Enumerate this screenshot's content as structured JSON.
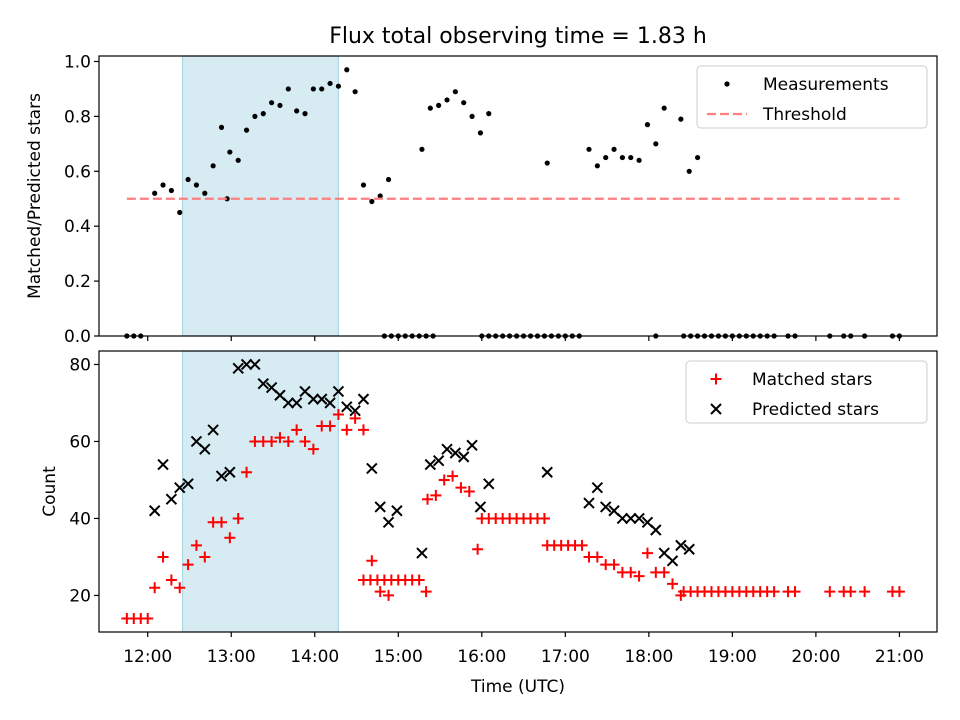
{
  "title": "Flux total observing time = 1.83 h",
  "chart_data": [
    {
      "type": "scatter",
      "ylabel": "Matched/Predicted stars",
      "xlabel": "",
      "xlim": [
        "11:25",
        "21:27"
      ],
      "ylim": [
        0,
        1.02
      ],
      "yticks": [
        "0.0",
        "0.2",
        "0.4",
        "0.6",
        "0.8",
        "1.0"
      ],
      "grid": false,
      "legend_position": "top-right",
      "shaded_interval": [
        "12:25",
        "14:17"
      ],
      "series": [
        {
          "name": "Measurements",
          "marker": "dot",
          "color": "#000000",
          "points": [
            [
              "11:45",
              0
            ],
            [
              "11:50",
              0
            ],
            [
              "11:55",
              0
            ],
            [
              "12:05",
              0.52
            ],
            [
              "12:11",
              0.55
            ],
            [
              "12:17",
              0.53
            ],
            [
              "12:23",
              0.45
            ],
            [
              "12:29",
              0.57
            ],
            [
              "12:35",
              0.55
            ],
            [
              "12:41",
              0.52
            ],
            [
              "12:47",
              0.62
            ],
            [
              "12:53",
              0.76
            ],
            [
              "12:59",
              0.67
            ],
            [
              "13:05",
              0.64
            ],
            [
              "13:11",
              0.75
            ],
            [
              "13:17",
              0.8
            ],
            [
              "13:23",
              0.81
            ],
            [
              "13:29",
              0.85
            ],
            [
              "13:35",
              0.84
            ],
            [
              "13:41",
              0.9
            ],
            [
              "13:47",
              0.82
            ],
            [
              "13:53",
              0.81
            ],
            [
              "13:59",
              0.9
            ],
            [
              "14:05",
              0.9
            ],
            [
              "14:11",
              0.92
            ],
            [
              "14:17",
              0.91
            ],
            [
              "14:23",
              0.97
            ],
            [
              "14:29",
              0.89
            ],
            [
              "14:35",
              0.55
            ],
            [
              "14:41",
              0.49
            ],
            [
              "14:47",
              0.51
            ],
            [
              "14:53",
              0.57
            ],
            [
              "12:57",
              0.5
            ],
            [
              "14:50",
              0
            ],
            [
              "14:55",
              0
            ],
            [
              "15:00",
              0
            ],
            [
              "15:05",
              0
            ],
            [
              "15:10",
              0
            ],
            [
              "15:15",
              0
            ],
            [
              "15:20",
              0
            ],
            [
              "15:25",
              0
            ],
            [
              "15:17",
              0.68
            ],
            [
              "15:23",
              0.83
            ],
            [
              "15:29",
              0.84
            ],
            [
              "15:35",
              0.86
            ],
            [
              "15:41",
              0.89
            ],
            [
              "15:47",
              0.85
            ],
            [
              "15:53",
              0.8
            ],
            [
              "15:59",
              0.74
            ],
            [
              "16:05",
              0.81
            ],
            [
              "16:00",
              0
            ],
            [
              "16:05",
              0
            ],
            [
              "16:10",
              0
            ],
            [
              "16:15",
              0
            ],
            [
              "16:20",
              0
            ],
            [
              "16:25",
              0
            ],
            [
              "16:30",
              0
            ],
            [
              "16:35",
              0
            ],
            [
              "16:40",
              0
            ],
            [
              "16:45",
              0
            ],
            [
              "16:50",
              0
            ],
            [
              "16:55",
              0
            ],
            [
              "17:00",
              0
            ],
            [
              "17:05",
              0
            ],
            [
              "17:10",
              0
            ],
            [
              "16:47",
              0.63
            ],
            [
              "17:17",
              0.68
            ],
            [
              "17:23",
              0.62
            ],
            [
              "17:29",
              0.65
            ],
            [
              "17:35",
              0.68
            ],
            [
              "17:41",
              0.65
            ],
            [
              "17:47",
              0.65
            ],
            [
              "17:53",
              0.64
            ],
            [
              "17:59",
              0.77
            ],
            [
              "18:05",
              0.7
            ],
            [
              "18:11",
              0.83
            ],
            [
              "18:23",
              0.79
            ],
            [
              "18:29",
              0.6
            ],
            [
              "18:35",
              0.65
            ],
            [
              "18:05",
              0
            ],
            [
              "18:25",
              0
            ],
            [
              "18:30",
              0
            ],
            [
              "18:35",
              0
            ],
            [
              "18:40",
              0
            ],
            [
              "18:45",
              0
            ],
            [
              "18:50",
              0
            ],
            [
              "18:55",
              0
            ],
            [
              "19:00",
              0
            ],
            [
              "19:05",
              0
            ],
            [
              "19:10",
              0
            ],
            [
              "19:15",
              0
            ],
            [
              "19:20",
              0
            ],
            [
              "19:25",
              0
            ],
            [
              "19:30",
              0
            ],
            [
              "19:40",
              0
            ],
            [
              "19:45",
              0
            ],
            [
              "20:10",
              0
            ],
            [
              "20:20",
              0
            ],
            [
              "20:25",
              0
            ],
            [
              "20:35",
              0
            ],
            [
              "20:55",
              0
            ],
            [
              "21:00",
              0
            ]
          ]
        },
        {
          "name": "Threshold",
          "style": "dashed",
          "color": "#ff7f7f",
          "points": [
            [
              "11:45",
              0.5
            ],
            [
              "21:00",
              0.5
            ]
          ]
        }
      ]
    },
    {
      "type": "scatter",
      "ylabel": "Count",
      "xlabel": "Time (UTC)",
      "xlim": [
        "11:25",
        "21:27"
      ],
      "ylim": [
        10.5,
        83.5
      ],
      "yticks": [
        "20",
        "40",
        "60",
        "80"
      ],
      "xticks": [
        "12:00",
        "13:00",
        "14:00",
        "15:00",
        "16:00",
        "17:00",
        "18:00",
        "19:00",
        "20:00",
        "21:00"
      ],
      "grid": false,
      "legend_position": "top-right",
      "shaded_interval": [
        "12:25",
        "14:17"
      ],
      "series": [
        {
          "name": "Matched stars",
          "marker": "plus",
          "color": "#ff0000",
          "points": [
            [
              "11:45",
              14
            ],
            [
              "11:50",
              14
            ],
            [
              "11:55",
              14
            ],
            [
              "12:00",
              14
            ],
            [
              "12:05",
              22
            ],
            [
              "12:11",
              30
            ],
            [
              "12:17",
              24
            ],
            [
              "12:23",
              22
            ],
            [
              "12:29",
              28
            ],
            [
              "12:35",
              33
            ],
            [
              "12:41",
              30
            ],
            [
              "12:47",
              39
            ],
            [
              "12:53",
              39
            ],
            [
              "12:59",
              35
            ],
            [
              "13:05",
              40
            ],
            [
              "13:11",
              52
            ],
            [
              "13:17",
              60
            ],
            [
              "13:23",
              60
            ],
            [
              "13:29",
              60
            ],
            [
              "13:35",
              61
            ],
            [
              "13:41",
              60
            ],
            [
              "13:47",
              63
            ],
            [
              "13:53",
              60
            ],
            [
              "13:59",
              58
            ],
            [
              "14:05",
              64
            ],
            [
              "14:11",
              64
            ],
            [
              "14:17",
              67
            ],
            [
              "14:23",
              63
            ],
            [
              "14:29",
              66
            ],
            [
              "14:35",
              63
            ],
            [
              "14:41",
              29
            ],
            [
              "14:47",
              21
            ],
            [
              "14:53",
              20
            ],
            [
              "14:35",
              24
            ],
            [
              "14:40",
              24
            ],
            [
              "14:45",
              24
            ],
            [
              "14:50",
              24
            ],
            [
              "14:55",
              24
            ],
            [
              "15:00",
              24
            ],
            [
              "15:05",
              24
            ],
            [
              "15:10",
              24
            ],
            [
              "15:15",
              24
            ],
            [
              "15:20",
              21
            ],
            [
              "15:21",
              45
            ],
            [
              "15:27",
              46
            ],
            [
              "15:33",
              50
            ],
            [
              "15:39",
              51
            ],
            [
              "15:45",
              48
            ],
            [
              "15:51",
              47
            ],
            [
              "15:57",
              32
            ],
            [
              "16:00",
              40
            ],
            [
              "16:05",
              40
            ],
            [
              "16:10",
              40
            ],
            [
              "16:15",
              40
            ],
            [
              "16:20",
              40
            ],
            [
              "16:25",
              40
            ],
            [
              "16:30",
              40
            ],
            [
              "16:35",
              40
            ],
            [
              "16:40",
              40
            ],
            [
              "16:45",
              40
            ],
            [
              "16:47",
              33
            ],
            [
              "16:52",
              33
            ],
            [
              "16:57",
              33
            ],
            [
              "17:02",
              33
            ],
            [
              "17:07",
              33
            ],
            [
              "17:12",
              33
            ],
            [
              "17:17",
              30
            ],
            [
              "17:23",
              30
            ],
            [
              "17:29",
              28
            ],
            [
              "17:35",
              28
            ],
            [
              "17:41",
              26
            ],
            [
              "17:47",
              26
            ],
            [
              "17:53",
              25
            ],
            [
              "17:59",
              31
            ],
            [
              "18:05",
              26
            ],
            [
              "18:11",
              26
            ],
            [
              "18:17",
              23
            ],
            [
              "18:23",
              20
            ],
            [
              "18:25",
              21
            ],
            [
              "18:30",
              21
            ],
            [
              "18:35",
              21
            ],
            [
              "18:40",
              21
            ],
            [
              "18:45",
              21
            ],
            [
              "18:50",
              21
            ],
            [
              "18:55",
              21
            ],
            [
              "19:00",
              21
            ],
            [
              "19:05",
              21
            ],
            [
              "19:10",
              21
            ],
            [
              "19:15",
              21
            ],
            [
              "19:20",
              21
            ],
            [
              "19:25",
              21
            ],
            [
              "19:30",
              21
            ],
            [
              "19:40",
              21
            ],
            [
              "19:45",
              21
            ],
            [
              "20:10",
              21
            ],
            [
              "20:20",
              21
            ],
            [
              "20:25",
              21
            ],
            [
              "20:35",
              21
            ],
            [
              "20:55",
              21
            ],
            [
              "21:00",
              21
            ]
          ]
        },
        {
          "name": "Predicted stars",
          "marker": "x",
          "color": "#000000",
          "points": [
            [
              "12:05",
              42
            ],
            [
              "12:11",
              54
            ],
            [
              "12:17",
              45
            ],
            [
              "12:23",
              48
            ],
            [
              "12:29",
              49
            ],
            [
              "12:35",
              60
            ],
            [
              "12:41",
              58
            ],
            [
              "12:47",
              63
            ],
            [
              "12:53",
              51
            ],
            [
              "12:59",
              52
            ],
            [
              "13:05",
              79
            ],
            [
              "13:11",
              80
            ],
            [
              "13:17",
              80
            ],
            [
              "13:23",
              75
            ],
            [
              "13:29",
              74
            ],
            [
              "13:35",
              72
            ],
            [
              "13:41",
              70
            ],
            [
              "13:47",
              70
            ],
            [
              "13:53",
              73
            ],
            [
              "13:59",
              71
            ],
            [
              "14:05",
              71
            ],
            [
              "14:11",
              70
            ],
            [
              "14:17",
              73
            ],
            [
              "14:23",
              69
            ],
            [
              "14:29",
              68
            ],
            [
              "14:35",
              71
            ],
            [
              "14:41",
              53
            ],
            [
              "14:47",
              43
            ],
            [
              "14:53",
              39
            ],
            [
              "14:59",
              42
            ],
            [
              "15:17",
              31
            ],
            [
              "15:23",
              54
            ],
            [
              "15:29",
              55
            ],
            [
              "15:35",
              58
            ],
            [
              "15:41",
              57
            ],
            [
              "15:47",
              56
            ],
            [
              "15:53",
              59
            ],
            [
              "15:59",
              43
            ],
            [
              "16:05",
              49
            ],
            [
              "16:47",
              52
            ],
            [
              "17:17",
              44
            ],
            [
              "17:23",
              48
            ],
            [
              "17:29",
              43
            ],
            [
              "17:35",
              42
            ],
            [
              "17:41",
              40
            ],
            [
              "17:47",
              40
            ],
            [
              "17:53",
              40
            ],
            [
              "17:59",
              39
            ],
            [
              "18:05",
              37
            ],
            [
              "18:11",
              31
            ],
            [
              "18:17",
              29
            ],
            [
              "18:23",
              33
            ],
            [
              "18:29",
              32
            ]
          ]
        }
      ]
    }
  ]
}
